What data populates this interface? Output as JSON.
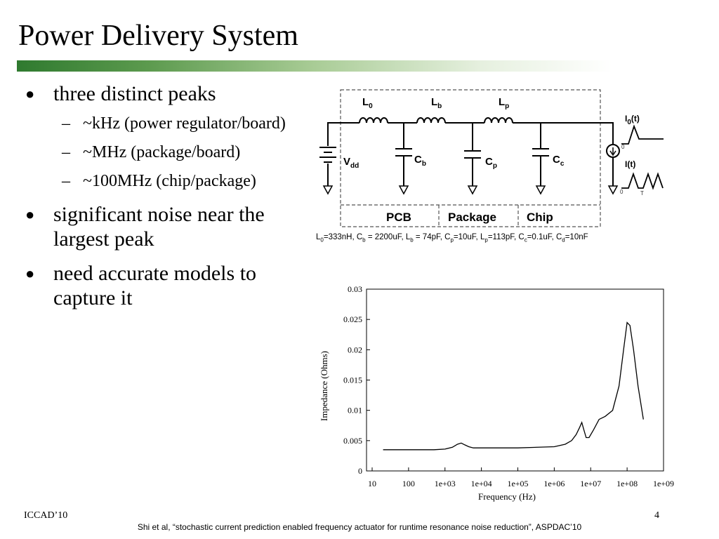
{
  "title": "Power Delivery System",
  "bullets": [
    {
      "text": "three distinct peaks",
      "sub": [
        "~kHz (power regulator/board)",
        "~MHz (package/board)",
        "~100MHz (chip/package)"
      ]
    },
    {
      "text": "significant noise near the largest peak"
    },
    {
      "text": "need accurate models to capture it"
    }
  ],
  "circuit": {
    "inductors": [
      "L0",
      "Lb",
      "Lp"
    ],
    "capacitors": [
      "Cb",
      "Cp",
      "Cc"
    ],
    "source": "Vdd",
    "waveforms": [
      "I0(t)",
      "I(t)"
    ],
    "wave_ticks": [
      "0",
      "0",
      "T"
    ],
    "regions": [
      "PCB",
      "Package",
      "Chip"
    ],
    "caption": "L0=333nH, Cb = 2200uF, Lb = 74pF, Cp=10uF, Lp=113pF, Cc=0.1uF, Cd=10nF"
  },
  "chart_data": {
    "type": "line",
    "xlabel": "Frequency (Hz)",
    "ylabel": "Impedance (Ohms)",
    "xscale": "log",
    "xlim": [
      10,
      1000000000
    ],
    "ylim": [
      0,
      0.03
    ],
    "x_ticks": [
      "10",
      "100",
      "1e+03",
      "1e+04",
      "1e+05",
      "1e+06",
      "1e+07",
      "1e+08",
      "1e+09"
    ],
    "y_ticks": [
      "0",
      "0.005",
      "0.01",
      "0.015",
      "0.02",
      "0.025",
      "0.03"
    ],
    "grid": false,
    "series": [
      {
        "x": [
          20,
          500,
          1000,
          1600,
          2200,
          2800,
          3500,
          4500,
          6000,
          10000,
          100000,
          1000000,
          2000000,
          3000000,
          4000000,
          5000000,
          5700000,
          6500000,
          7500000,
          9000000,
          12000000,
          17000000,
          25000000,
          40000000,
          60000000,
          80000000,
          100000000,
          120000000,
          150000000,
          200000000,
          280000000
        ],
        "y": [
          0.0035,
          0.0035,
          0.0036,
          0.0039,
          0.0044,
          0.0046,
          0.0043,
          0.004,
          0.0038,
          0.0038,
          0.0038,
          0.004,
          0.0044,
          0.005,
          0.006,
          0.0072,
          0.008,
          0.0068,
          0.0055,
          0.0055,
          0.0068,
          0.0085,
          0.009,
          0.01,
          0.014,
          0.02,
          0.0245,
          0.024,
          0.02,
          0.014,
          0.0085
        ]
      }
    ]
  },
  "footer": {
    "left": "ICCAD’10",
    "page": "4",
    "citation": "Shi et al, “stochastic current prediction enabled frequency actuator for runtime resonance noise reduction”, ASPDAC’10"
  }
}
